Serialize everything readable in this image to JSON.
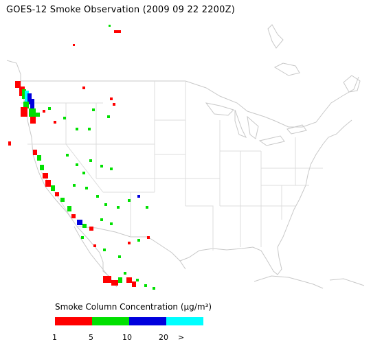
{
  "title": "GOES-12 Smoke Observation (2009 09 22  2200Z)",
  "legend": {
    "title": "Smoke Column Concentration (μg/m³)",
    "bins": [
      {
        "color": "#ff0000"
      },
      {
        "color": "#00e000"
      },
      {
        "color": "#0000dd"
      },
      {
        "color": "#00ffff"
      }
    ],
    "ticks": [
      "1",
      "5",
      "10",
      "20",
      ">"
    ]
  }
}
